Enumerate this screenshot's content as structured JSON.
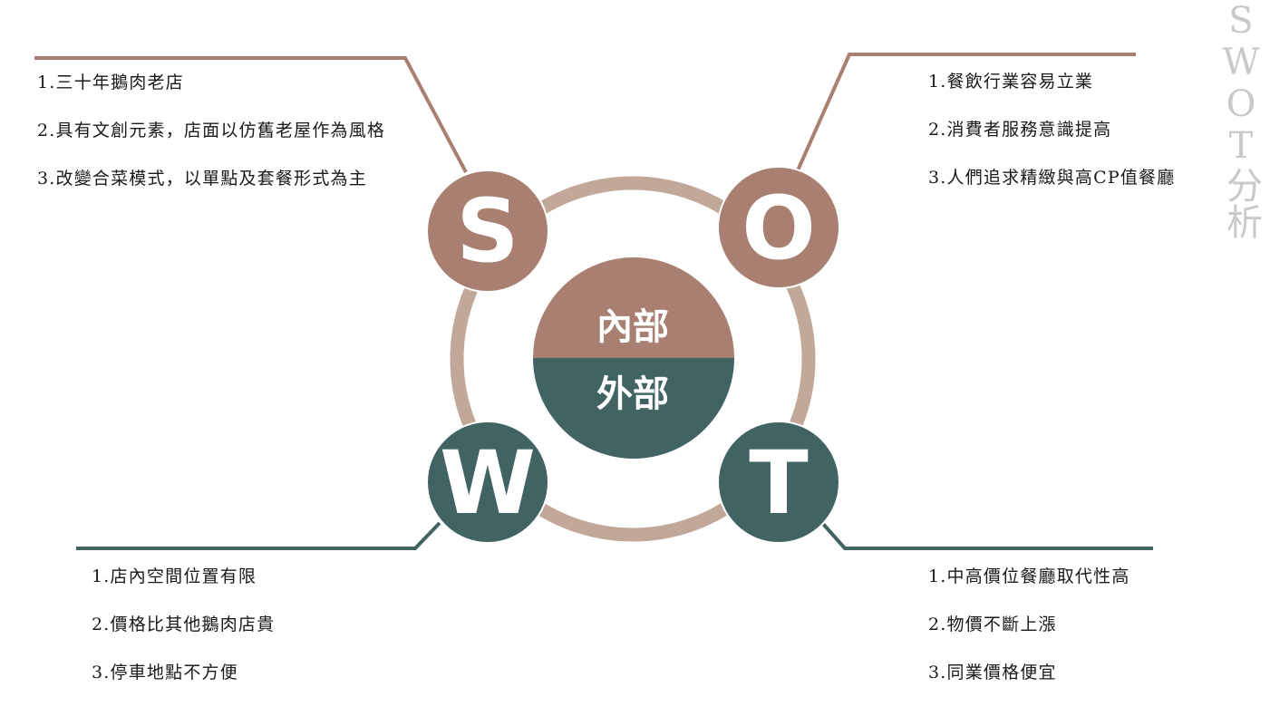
{
  "side_title": "SWOT分析",
  "center": {
    "top_label": "內部",
    "bottom_label": "外部"
  },
  "quadrants": {
    "s": {
      "letter": "S",
      "color": "#a97f71",
      "items": [
        "1.三十年鵝肉老店",
        "2.具有文創元素，店面以仿舊老屋作為風格",
        "3.改變合菜模式，以單點及套餐形式為主"
      ]
    },
    "o": {
      "letter": "O",
      "color": "#a97f71",
      "items": [
        "1.餐飲行業容易立業",
        "2.消費者服務意識提高",
        "3.人們追求精緻與高CP值餐廳"
      ]
    },
    "w": {
      "letter": "W",
      "color": "#416362",
      "items": [
        "1.店內空間位置有限",
        "2.價格比其他鵝肉店貴",
        "3.停車地點不方便"
      ]
    },
    "t": {
      "letter": "T",
      "color": "#416362",
      "items": [
        "1.中高價位餐廳取代性高",
        "2.物價不斷上漲",
        "3.同業價格便宜"
      ]
    }
  },
  "colors": {
    "ring": "#c2a898",
    "internal": "#a97f71",
    "external": "#416362",
    "side_title": "#c9c9c9"
  }
}
